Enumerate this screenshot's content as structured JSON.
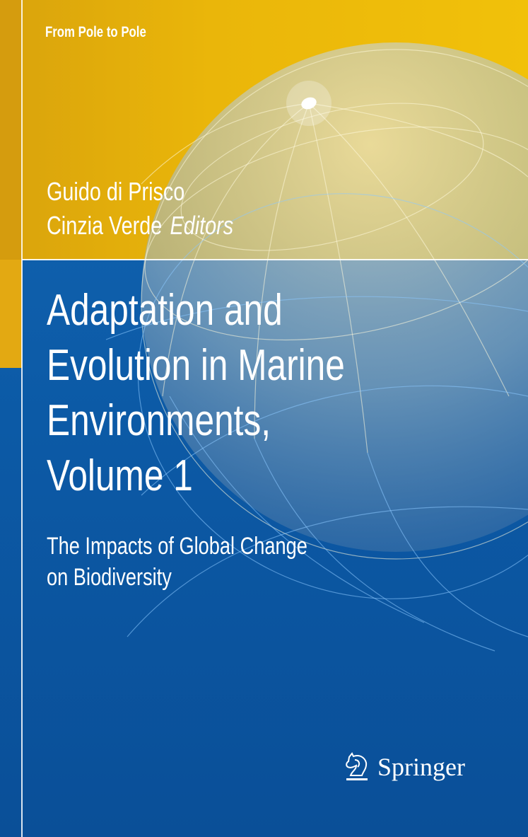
{
  "series": "From Pole to Pole",
  "editors": [
    "Guido di Prisco",
    "Cinzia Verde"
  ],
  "editors_label": "Editors",
  "title_lines": [
    "Adaptation and",
    "Evolution in Marine",
    "Environments,",
    "Volume 1"
  ],
  "subtitle_lines": [
    "The Impacts of Global Change",
    "on Biodiversity"
  ],
  "publisher": {
    "name": "Springer",
    "logo_icon": "springer-horse-icon"
  },
  "colors": {
    "yellow": "#eab60a",
    "blue": "#0c5aa6",
    "text": "#ffffff"
  }
}
